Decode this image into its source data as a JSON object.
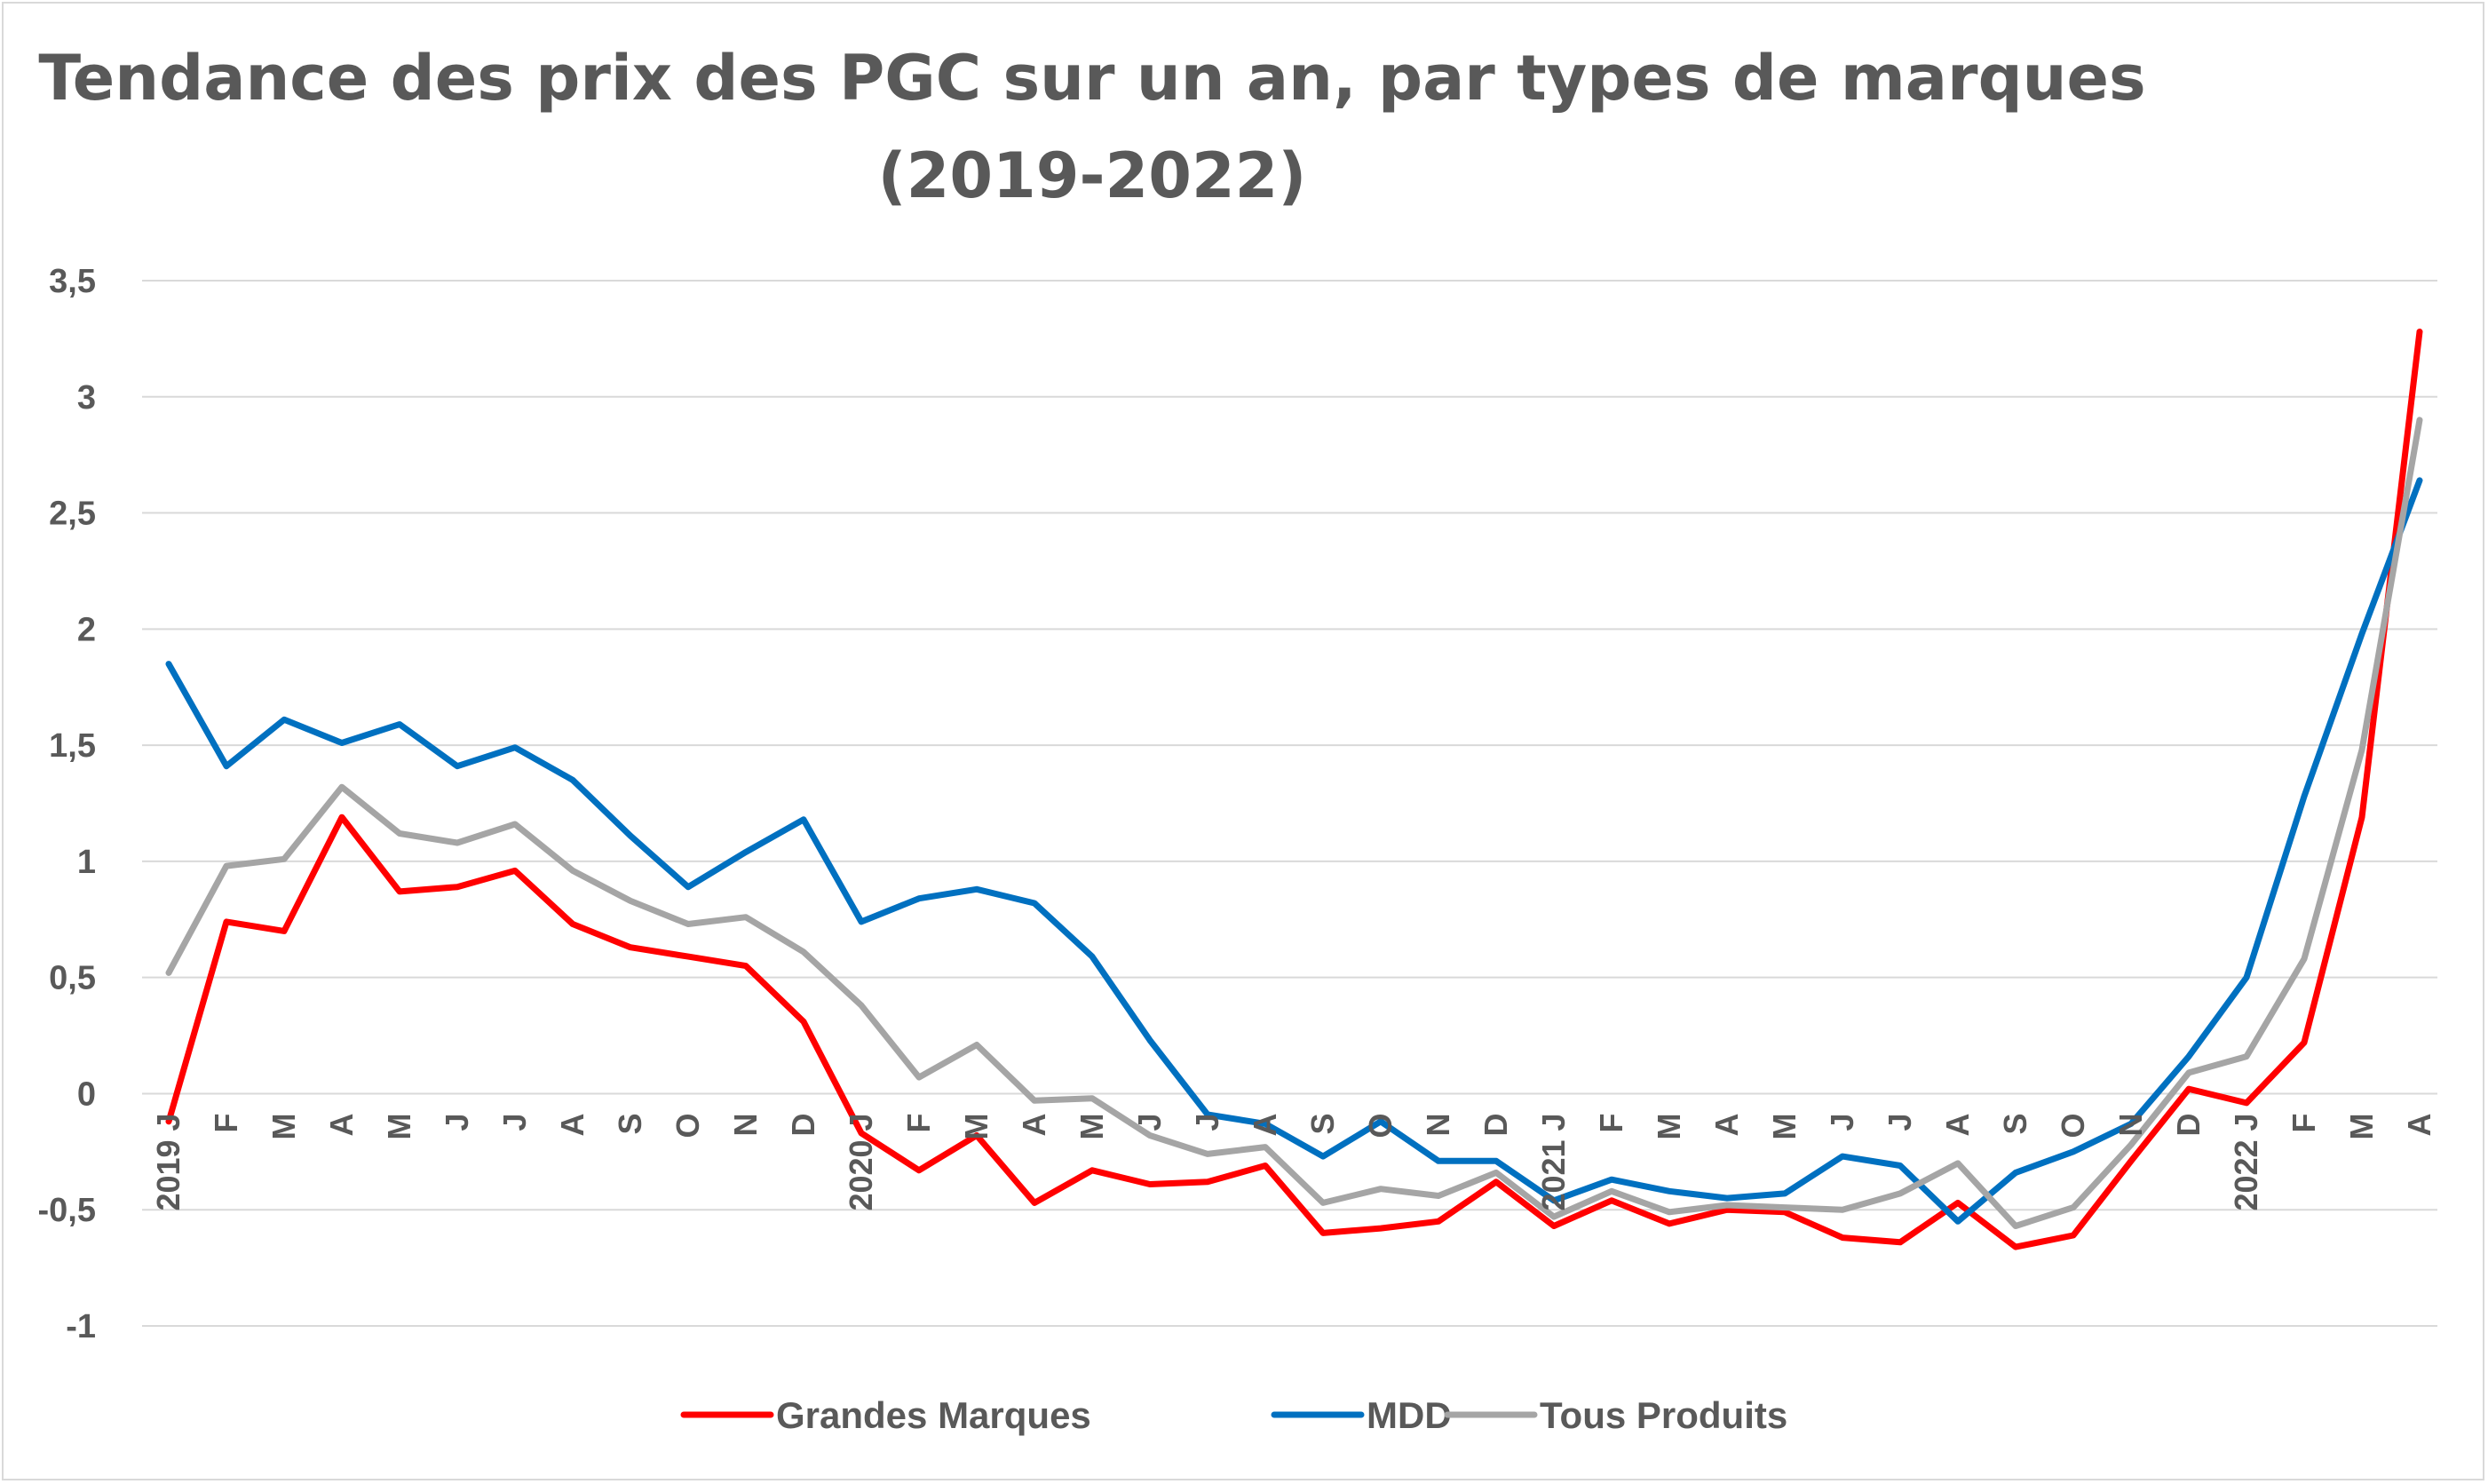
{
  "chart_data": {
    "type": "line",
    "title": "Tendance des prix des PGC sur un an, par types de marques",
    "subtitle": "(2019-2022)",
    "xlabel": "",
    "ylabel": "",
    "ylim": [
      -1,
      3.5
    ],
    "yticks": [
      3.5,
      3,
      2.5,
      2,
      1.5,
      1,
      0.5,
      0,
      -0.5,
      -1
    ],
    "ytick_labels": [
      "3,5",
      "3",
      "2,5",
      "2",
      "1,5",
      "1",
      "0,5",
      "0",
      "-0,5",
      "-1"
    ],
    "grid": true,
    "legend_position": "bottom",
    "categories": [
      "2019 J",
      "F",
      "M",
      "A",
      "M",
      "J",
      "J",
      "A",
      "S",
      "O",
      "N",
      "D",
      "2020 J",
      "F",
      "M",
      "A",
      "M",
      "J",
      "J",
      "A",
      "S",
      "O",
      "N",
      "D",
      "2021 J",
      "F",
      "M",
      "A",
      "M",
      "J",
      "J",
      "A",
      "S",
      "O",
      "N",
      "D",
      "2022 J",
      "F",
      "M",
      "A"
    ],
    "series": [
      {
        "name": "Grandes Marques",
        "color": "#ff0000",
        "values": [
          -0.12,
          0.74,
          0.7,
          1.19,
          0.87,
          0.89,
          0.96,
          0.73,
          0.63,
          0.59,
          0.55,
          0.31,
          -0.17,
          -0.33,
          -0.18,
          -0.47,
          -0.33,
          -0.39,
          -0.38,
          -0.31,
          -0.6,
          -0.58,
          -0.55,
          -0.38,
          -0.57,
          -0.46,
          -0.56,
          -0.5,
          -0.51,
          -0.62,
          -0.64,
          -0.47,
          -0.66,
          -0.61,
          -0.29,
          0.02,
          -0.04,
          0.22,
          1.19,
          3.28
        ]
      },
      {
        "name": "MDD",
        "color": "#0070c0",
        "values": [
          1.85,
          1.41,
          1.61,
          1.51,
          1.59,
          1.41,
          1.49,
          1.35,
          1.11,
          0.89,
          1.04,
          1.18,
          0.74,
          0.84,
          0.88,
          0.82,
          0.59,
          0.23,
          -0.09,
          -0.13,
          -0.27,
          -0.12,
          -0.29,
          -0.29,
          -0.46,
          -0.37,
          -0.42,
          -0.45,
          -0.43,
          -0.27,
          -0.31,
          -0.55,
          -0.34,
          -0.25,
          -0.13,
          0.16,
          0.5,
          1.28,
          1.98,
          2.64
        ]
      },
      {
        "name": "Tous Produits",
        "color": "#a5a5a5",
        "values": [
          0.52,
          0.98,
          1.01,
          1.32,
          1.12,
          1.08,
          1.16,
          0.96,
          0.83,
          0.73,
          0.76,
          0.61,
          0.38,
          0.07,
          0.21,
          -0.03,
          -0.02,
          -0.18,
          -0.26,
          -0.23,
          -0.47,
          -0.41,
          -0.44,
          -0.34,
          -0.53,
          -0.42,
          -0.51,
          -0.48,
          -0.49,
          -0.5,
          -0.43,
          -0.3,
          -0.57,
          -0.49,
          -0.22,
          0.09,
          0.16,
          0.58,
          1.48,
          2.9
        ]
      }
    ]
  }
}
